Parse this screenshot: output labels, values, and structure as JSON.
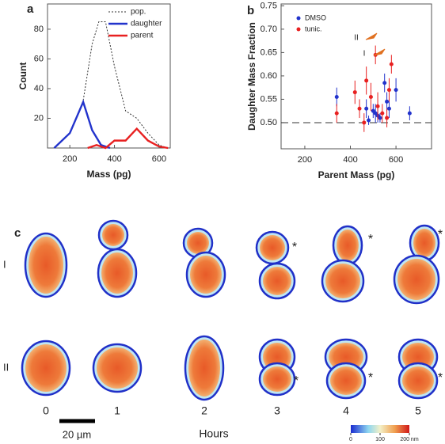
{
  "chart_data": [
    {
      "type": "line",
      "panel": "a",
      "x_label": "Mass (pg)",
      "y_label": "Count",
      "xlim": [
        100,
        650
      ],
      "xticks": [
        200,
        400,
        600
      ],
      "ylim": [
        0,
        97
      ],
      "yticks": [
        20,
        40,
        60,
        80
      ],
      "legend": "upper right",
      "series": [
        {
          "name": "pop.",
          "color": "#333333",
          "linestyle": "dotted",
          "x": [
            130,
            200,
            260,
            300,
            330,
            360,
            400,
            450,
            500,
            550,
            600,
            640
          ],
          "values": [
            0,
            10,
            32,
            70,
            85,
            85,
            55,
            25,
            20,
            10,
            2,
            0
          ]
        },
        {
          "name": "daughter",
          "color": "#2233cc",
          "linestyle": "solid",
          "x": [
            130,
            200,
            260,
            300,
            340,
            380
          ],
          "values": [
            0,
            10,
            31,
            12,
            2,
            0
          ]
        },
        {
          "name": "parent",
          "color": "#e82020",
          "linestyle": "solid",
          "x": [
            280,
            320,
            360,
            400,
            450,
            500,
            550,
            600,
            640
          ],
          "values": [
            0,
            2,
            0,
            5,
            5,
            13,
            5,
            1,
            0
          ]
        }
      ]
    },
    {
      "type": "scatter",
      "panel": "b",
      "x_label": "Parent Mass (pg)",
      "y_label": "Daughter Mass Fraction",
      "xlim": [
        96,
        756
      ],
      "xticks": [
        200,
        400,
        600
      ],
      "ylim": [
        0.444,
        0.754
      ],
      "yticks": [
        {
          "value": 0.5,
          "label": "0.50"
        },
        0.55,
        {
          "value": 0.6,
          "label": "0.60"
        },
        0.65,
        {
          "value": 0.7,
          "label": "0.70"
        },
        0.75
      ],
      "reference_line": 0.5,
      "legend": "upper left",
      "annotations": [
        "II",
        "I"
      ],
      "series": [
        {
          "name": "DMSO",
          "color": "#2233cc",
          "x": [
            340,
            470,
            500,
            510,
            530,
            550,
            560,
            520,
            600,
            660,
            480,
            570
          ],
          "values": [
            0.555,
            0.53,
            0.525,
            0.52,
            0.51,
            0.585,
            0.545,
            0.515,
            0.57,
            0.52,
            0.505,
            0.53
          ],
          "errors": [
            0.02,
            0.02,
            0.015,
            0.02,
            0.01,
            0.02,
            0.02,
            0.015,
            0.025,
            0.015,
            0.01,
            0.02
          ]
        },
        {
          "name": "tunic.",
          "color": "#e82020",
          "x": [
            340,
            420,
            440,
            460,
            470,
            490,
            510,
            520,
            540,
            560,
            580,
            570
          ],
          "values": [
            0.52,
            0.565,
            0.53,
            0.5,
            0.59,
            0.555,
            0.645,
            0.535,
            0.52,
            0.51,
            0.625,
            0.57
          ],
          "errors": [
            0.02,
            0.025,
            0.02,
            0.02,
            0.03,
            0.03,
            0.02,
            0.03,
            0.02,
            0.02,
            0.02,
            0.025
          ]
        }
      ]
    }
  ],
  "images": {
    "panel": "c",
    "row_labels": [
      "I",
      "II"
    ],
    "hours": [
      0,
      1,
      2,
      3,
      4,
      5
    ],
    "marker": "*",
    "scale_bar": "20 µm",
    "x_label": "Hours",
    "colorbar": {
      "lim": [
        0,
        200
      ],
      "ticks": [
        0,
        100,
        {
          "value": 200,
          "label": "200 nm"
        }
      ]
    }
  }
}
